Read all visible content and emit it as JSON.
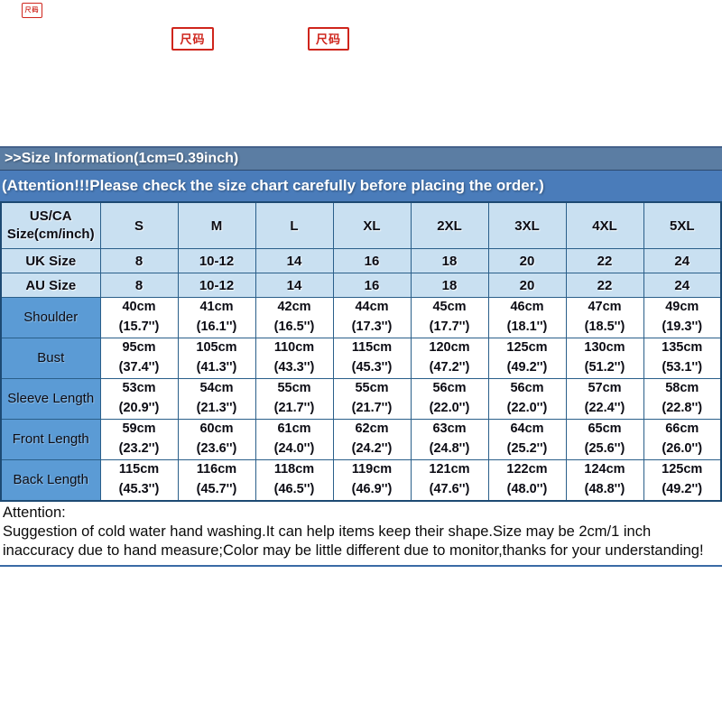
{
  "stamps": {
    "small": "尺码",
    "left": "尺码",
    "right": "尺码"
  },
  "header": {
    "size_info": ">>Size Information(1cm=0.39inch)",
    "attention_banner": "(Attention!!!Please check the size chart carefully before placing the order.)"
  },
  "table": {
    "corner_label": "US/CA Size(cm/inch)",
    "sizes": [
      "S",
      "M",
      "L",
      "XL",
      "2XL",
      "3XL",
      "4XL",
      "5XL"
    ],
    "uk_label": "UK Size",
    "uk": [
      "8",
      "10-12",
      "14",
      "16",
      "18",
      "20",
      "22",
      "24"
    ],
    "au_label": "AU Size",
    "au": [
      "8",
      "10-12",
      "14",
      "16",
      "18",
      "20",
      "22",
      "24"
    ],
    "rows": [
      {
        "label": "Shoulder",
        "cm": [
          "40cm",
          "41cm",
          "42cm",
          "44cm",
          "45cm",
          "46cm",
          "47cm",
          "49cm"
        ],
        "inch": [
          "(15.7'')",
          "(16.1'')",
          "(16.5'')",
          "(17.3'')",
          "(17.7'')",
          "(18.1'')",
          "(18.5'')",
          "(19.3'')"
        ]
      },
      {
        "label": "Bust",
        "cm": [
          "95cm",
          "105cm",
          "110cm",
          "115cm",
          "120cm",
          "125cm",
          "130cm",
          "135cm"
        ],
        "inch": [
          "(37.4'')",
          "(41.3'')",
          "(43.3'')",
          "(45.3'')",
          "(47.2'')",
          "(49.2'')",
          "(51.2'')",
          "(53.1'')"
        ]
      },
      {
        "label": "Sleeve Length",
        "cm": [
          "53cm",
          "54cm",
          "55cm",
          "55cm",
          "56cm",
          "56cm",
          "57cm",
          "58cm"
        ],
        "inch": [
          "(20.9'')",
          "(21.3'')",
          "(21.7'')",
          "(21.7'')",
          "(22.0'')",
          "(22.0'')",
          "(22.4'')",
          "(22.8'')"
        ]
      },
      {
        "label": "Front Length",
        "cm": [
          "59cm",
          "60cm",
          "61cm",
          "62cm",
          "63cm",
          "64cm",
          "65cm",
          "66cm"
        ],
        "inch": [
          "(23.2'')",
          "(23.6'')",
          "(24.0'')",
          "(24.2'')",
          "(24.8'')",
          "(25.2'')",
          "(25.6'')",
          "(26.0'')"
        ]
      },
      {
        "label": "Back Length",
        "cm": [
          "115cm",
          "116cm",
          "118cm",
          "119cm",
          "121cm",
          "122cm",
          "124cm",
          "125cm"
        ],
        "inch": [
          "(45.3'')",
          "(45.7'')",
          "(46.5'')",
          "(46.9'')",
          "(47.6'')",
          "(48.0'')",
          "(48.8'')",
          "(49.2'')"
        ]
      }
    ]
  },
  "footer": {
    "attention_label": "Attention:",
    "note": "Suggestion of cold water hand washing.It can help items keep their shape.Size may be 2cm/1 inch inaccuracy due to hand measure;Color may be little different due to monitor,thanks for your understanding!"
  },
  "colors": {
    "size_info_bar": "#5b7da3",
    "attention_bar": "#4a7cba",
    "light_cell": "#c9e0f1",
    "label_cell": "#5b9bd5",
    "grid_border": "#2a5f8a",
    "stamp_red": "#cf251c"
  },
  "chart_data": {
    "type": "table",
    "title": ">>Size Information(1cm=0.39inch)",
    "subtitle": "(Attention!!!Please check the size chart carefully before placing the order.)",
    "columns": [
      "US/CA Size(cm/inch)",
      "S",
      "M",
      "L",
      "XL",
      "2XL",
      "3XL",
      "4XL",
      "5XL"
    ],
    "rows": [
      [
        "UK Size",
        "8",
        "10-12",
        "14",
        "16",
        "18",
        "20",
        "22",
        "24"
      ],
      [
        "AU Size",
        "8",
        "10-12",
        "14",
        "16",
        "18",
        "20",
        "22",
        "24"
      ],
      [
        "Shoulder",
        "40cm (15.7'')",
        "41cm (16.1'')",
        "42cm (16.5'')",
        "44cm (17.3'')",
        "45cm (17.7'')",
        "46cm (18.1'')",
        "47cm (18.5'')",
        "49cm (19.3'')"
      ],
      [
        "Bust",
        "95cm (37.4'')",
        "105cm (41.3'')",
        "110cm (43.3'')",
        "115cm (45.3'')",
        "120cm (47.2'')",
        "125cm (49.2'')",
        "130cm (51.2'')",
        "135cm (53.1'')"
      ],
      [
        "Sleeve Length",
        "53cm (20.9'')",
        "54cm (21.3'')",
        "55cm (21.7'')",
        "55cm (21.7'')",
        "56cm (22.0'')",
        "56cm (22.0'')",
        "57cm (22.4'')",
        "58cm (22.8'')"
      ],
      [
        "Front Length",
        "59cm (23.2'')",
        "60cm (23.6'')",
        "61cm (24.0'')",
        "62cm (24.2'')",
        "63cm (24.8'')",
        "64cm (25.2'')",
        "65cm (25.6'')",
        "66cm (26.0'')"
      ],
      [
        "Back Length",
        "115cm (45.3'')",
        "116cm (45.7'')",
        "118cm (46.5'')",
        "119cm (46.9'')",
        "121cm (47.6'')",
        "122cm (48.0'')",
        "124cm (48.8'')",
        "125cm (49.2'')"
      ]
    ],
    "annotation": "Attention: Suggestion of cold water hand washing.It can help items keep their shape.Size may be 2cm/1 inch inaccuracy due to hand measure;Color may be little different due to monitor,thanks for your understanding!"
  }
}
